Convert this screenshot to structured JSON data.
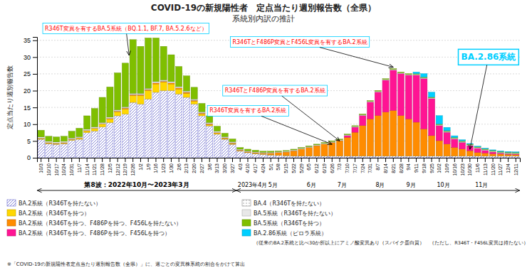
{
  "chart_data": {
    "type": "bar",
    "stacked": true,
    "title": "COVID-19の新規陽性者　定点当たり週別報告数（全県）",
    "subtitle": "系統別内訳の推計",
    "ylabel": "定点当たり週別報告数",
    "ylim": [
      0,
      36
    ],
    "yticks": [
      0,
      5,
      10,
      15,
      20,
      25,
      30,
      35
    ],
    "grid": true,
    "legend": "bottom",
    "categories": [
      "10/3",
      "10/10",
      "10/17",
      "10/24",
      "10/31",
      "11/7",
      "11/14",
      "11/21",
      "11/28",
      "12/5",
      "12/12",
      "12/19",
      "12/26",
      "1/2",
      "1/9",
      "1/16",
      "1/23",
      "1/30",
      "2/6",
      "2/13",
      "2/20",
      "2/27",
      "3/6",
      "3/13",
      "3/20",
      "3/27",
      "4/3",
      "4/10",
      "4/17",
      "4/24",
      "5/1",
      "5/8",
      "5/15",
      "5/22",
      "5/29",
      "6/5",
      "6/12",
      "6/19",
      "6/26",
      "7/3",
      "7/10",
      "7/17",
      "7/24",
      "7/31",
      "8/7",
      "8/14",
      "8/21",
      "8/28",
      "9/4",
      "9/11",
      "9/18",
      "9/25",
      "10/2",
      "10/9",
      "10/16",
      "10/23",
      "10/30",
      "11/6",
      "11/13",
      "11/20",
      "11/27",
      "12/4",
      "12/11"
    ],
    "series": [
      {
        "name": "BA.2系統（R346Tを持たない）",
        "color": "#6666CC",
        "values": [
          5.5,
          4.2,
          4.0,
          4.2,
          5.2,
          5.5,
          7.5,
          8.0,
          9.2,
          10.5,
          12.5,
          13.0,
          16.5,
          16.0,
          17.5,
          19.5,
          20.0,
          20.0,
          19.0,
          18.0,
          16.0,
          12.5,
          9.5,
          7.0,
          5.5,
          4.0,
          2.0,
          1.5,
          1.2,
          1.0,
          0.8,
          0.7,
          0.6,
          0.5,
          0.5,
          0.5,
          0.5,
          0.5,
          0.5,
          0.5,
          0.5,
          0.5,
          0.5,
          0.5,
          0.5,
          0.5,
          0.5,
          0.5,
          0.5,
          0.5,
          0.5,
          0.5,
          0.5,
          0.5,
          0.5,
          0.5,
          0.5,
          0.5,
          0.5,
          0.5,
          0.5,
          0.5,
          0.5
        ]
      },
      {
        "name": "BA.2系統（R346Tを持つ）",
        "color": "#FFD700",
        "values": [
          0.2,
          0.2,
          0.2,
          0.2,
          0.2,
          0.3,
          0.5,
          0.7,
          0.8,
          1.0,
          1.2,
          1.5,
          2.0,
          2.5,
          2.5,
          2.5,
          2.5,
          2.0,
          1.5,
          1.2,
          0.8,
          0.5,
          0.3,
          0.3,
          0.2,
          0.2,
          0.1,
          0.1,
          0.1,
          0.1,
          0.1,
          0.1,
          0.1,
          0.1,
          0.1,
          0.1,
          0.1,
          0.1,
          0.1,
          0.1,
          0.1,
          0.1,
          0.1,
          0.1,
          0.1,
          0.1,
          0.1,
          0.1,
          0.1,
          0.1,
          0.1,
          0.1,
          0.1,
          0.1,
          0.1,
          0.1,
          0.1,
          0.1,
          0.1,
          0.1,
          0.1,
          0.1,
          0.1
        ]
      },
      {
        "name": "BA.2系統（R346Tを持つ、F486Pを持つ、F456Lを持たない）",
        "color": "#FF8C00",
        "values": [
          0.1,
          0.1,
          0.1,
          0.1,
          0.1,
          0.1,
          0.1,
          0.1,
          0.1,
          0.2,
          0.2,
          0.3,
          0.3,
          0.3,
          0.3,
          0.3,
          0.3,
          0.3,
          0.3,
          0.3,
          0.3,
          0.3,
          0.3,
          0.2,
          0.2,
          0.2,
          0.2,
          0.2,
          0.2,
          0.3,
          0.5,
          0.8,
          1.0,
          1.5,
          2.0,
          2.5,
          3.0,
          3.5,
          4.0,
          4.5,
          5.5,
          7.0,
          9.0,
          11.0,
          12.0,
          13.0,
          13.5,
          12.0,
          11.0,
          10.0,
          8.0,
          6.0,
          4.5,
          3.5,
          2.5,
          2.0,
          1.5,
          1.0,
          0.8,
          0.6,
          0.5,
          0.4,
          0.3
        ]
      },
      {
        "name": "BA.2系統（R346Tを持つ、F486Pを持つ、F456Lを持つ）",
        "color": "#FF1493",
        "values": [
          0.0,
          0.0,
          0.0,
          0.0,
          0.0,
          0.0,
          0.0,
          0.0,
          0.0,
          0.0,
          0.0,
          0.0,
          0.0,
          0.0,
          0.0,
          0.0,
          0.0,
          0.0,
          0.0,
          0.0,
          0.0,
          0.0,
          0.0,
          0.0,
          0.0,
          0.0,
          0.0,
          0.0,
          0.0,
          0.0,
          0.0,
          0.0,
          0.0,
          0.0,
          0.0,
          0.0,
          0.0,
          0.0,
          0.0,
          0.0,
          0.5,
          1.5,
          3.0,
          5.0,
          7.0,
          9.5,
          12.0,
          12.5,
          13.0,
          14.0,
          15.0,
          11.0,
          4.5,
          3.5,
          2.5,
          2.0,
          1.5,
          1.2,
          0.8,
          0.5,
          0.3,
          0.2,
          0.2
        ]
      },
      {
        "name": "BA.4（R346Tを持たない）",
        "color": "#888888",
        "values": [
          0.1,
          0.1,
          0.1,
          0.1,
          0.1,
          0.1,
          0.1,
          0.1,
          0.1,
          0.1,
          0.1,
          0.1,
          0.1,
          0.1,
          0.1,
          0.1,
          0.1,
          0.1,
          0.1,
          0.1,
          0.1,
          0.1,
          0.1,
          0.1,
          0.1,
          0.1,
          0.05,
          0.05,
          0.05,
          0.05,
          0.05,
          0.05,
          0.05,
          0.05,
          0.05,
          0.05,
          0.05,
          0.05,
          0.05,
          0.05,
          0.05,
          0.05,
          0.05,
          0.05,
          0.05,
          0.05,
          0.05,
          0.05,
          0.05,
          0.05,
          0.05,
          0.05,
          0.05,
          0.05,
          0.05,
          0.05,
          0.05,
          0.05,
          0.05,
          0.05,
          0.05,
          0.05,
          0.05
        ]
      },
      {
        "name": "BA.5系統（R346Tを持たない）",
        "color": "#E8E8E8",
        "values": [
          0.3,
          0.3,
          0.3,
          0.3,
          0.3,
          0.3,
          0.3,
          0.3,
          0.3,
          0.3,
          0.3,
          0.3,
          0.3,
          0.3,
          0.3,
          0.3,
          0.3,
          0.3,
          0.3,
          0.3,
          0.3,
          0.3,
          0.3,
          0.3,
          0.3,
          0.3,
          0.2,
          0.2,
          0.2,
          0.2,
          0.2,
          0.2,
          0.2,
          0.2,
          0.2,
          0.2,
          0.2,
          0.2,
          0.2,
          0.2,
          0.2,
          0.2,
          0.2,
          0.2,
          0.2,
          0.2,
          0.2,
          0.2,
          0.2,
          0.2,
          0.2,
          0.2,
          0.2,
          0.2,
          0.2,
          0.2,
          0.2,
          0.2,
          0.2,
          0.2,
          0.2,
          0.2,
          0.2
        ]
      },
      {
        "name": "BA.5系統（R346Tを持つ）",
        "color": "#7FBF00",
        "values": [
          2.0,
          1.5,
          1.5,
          1.5,
          2.0,
          2.5,
          4.0,
          5.5,
          7.5,
          9.0,
          11.0,
          13.0,
          16.0,
          14.0,
          15.0,
          13.0,
          10.0,
          8.0,
          6.0,
          4.5,
          3.5,
          2.5,
          2.0,
          1.5,
          1.0,
          0.8,
          0.5,
          0.5,
          0.5,
          0.3,
          0.3,
          0.2,
          0.2,
          0.2,
          0.2,
          0.2,
          0.2,
          0.2,
          0.2,
          0.2,
          0.2,
          0.2,
          0.2,
          0.2,
          0.2,
          0.2,
          0.2,
          0.2,
          0.2,
          0.2,
          0.2,
          0.2,
          0.2,
          0.2,
          0.2,
          0.2,
          0.2,
          0.2,
          0.2,
          0.2,
          0.2,
          0.2,
          0.2
        ]
      },
      {
        "name": "BA.2.86系統（ピロラ系統）",
        "color": "#00CFFF",
        "values": [
          0.0,
          0.0,
          0.0,
          0.0,
          0.0,
          0.0,
          0.0,
          0.0,
          0.0,
          0.0,
          0.0,
          0.0,
          0.0,
          0.0,
          0.0,
          0.0,
          0.0,
          0.0,
          0.0,
          0.0,
          0.0,
          0.0,
          0.0,
          0.0,
          0.0,
          0.0,
          0.0,
          0.0,
          0.0,
          0.0,
          0.0,
          0.0,
          0.0,
          0.0,
          0.0,
          0.0,
          0.0,
          0.0,
          0.0,
          0.0,
          0.0,
          0.0,
          0.0,
          0.0,
          0.0,
          0.0,
          0.0,
          0.0,
          0.0,
          0.5,
          1.0,
          1.5,
          2.5,
          1.0,
          0.5,
          0.3,
          0.2,
          0.2,
          0.2,
          0.2,
          0.2,
          0.2,
          0.2
        ]
      }
    ],
    "annotations": [
      "R346T変異を有するBA.5系統（BQ.1.1, BF.7, BA.5.2.6など）",
      "R346TとF486P変異とF456L変異を有するBA.2系統",
      "R346TとF486P変異を有するBA.2系統",
      "R346T変異を有するBA.2系統",
      "BA.2.86系統"
    ],
    "period_label": "第8波：2022年10月〜2023年3月",
    "month_labels": [
      "2023年4月",
      "5月",
      "6月",
      "7月",
      "8月",
      "9月",
      "10月",
      "11月"
    ],
    "notes": [
      "（従来のBA.2系統と比べ30か所以上にアミノ酸変異あり（スパイク蛋白質）　（ただし、R346T・F456L変異は持たない）",
      "※「COVID-19の新規陽性者定点当たり週別報告数（全県）」に、週ごとの変異株系統の割合をかけて算出"
    ]
  }
}
